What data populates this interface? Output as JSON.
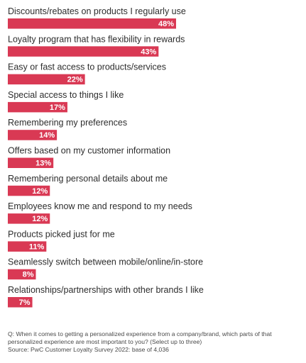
{
  "chart_data": {
    "type": "bar",
    "orientation": "horizontal",
    "categories": [
      "Discounts/rebates on products I regularly use",
      "Loyalty program that has flexibility in rewards",
      "Easy or fast access to products/services",
      "Special access to things I like",
      "Remembering my preferences",
      "Offers based on my customer information",
      "Remembering personal details about me",
      "Employees know me and respond to my needs",
      "Products picked just for me",
      "Seamlessly switch between mobile/online/in-store",
      "Relationships/partnerships with other brands I like"
    ],
    "values": [
      48,
      43,
      22,
      17,
      14,
      13,
      12,
      12,
      11,
      8,
      7
    ],
    "value_labels": [
      "48%",
      "43%",
      "22%",
      "17%",
      "14%",
      "13%",
      "12%",
      "12%",
      "11%",
      "8%",
      "7%"
    ],
    "bar_color": "#d93954",
    "xlim": [
      0,
      48
    ],
    "grid": false,
    "title": "",
    "xlabel": "",
    "ylabel": ""
  },
  "footnote": {
    "question": "Q: When it comes to getting a personalized experience from a company/brand, which parts of that personalized experience are most important to you? (Select up to three)",
    "source": "Source: PwC Customer Loyalty Survey 2022: base of 4,036"
  }
}
